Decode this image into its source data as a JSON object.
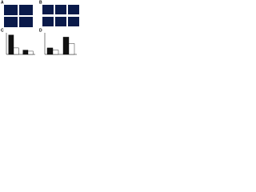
{
  "panels": {
    "a": "A",
    "b": "B",
    "c": "C",
    "d": "D"
  },
  "chart_data": [
    {
      "type": "bar",
      "categories": [
        null,
        null
      ],
      "series": [
        {
          "color": "#111111",
          "values": [
            0.9,
            0.2
          ]
        },
        {
          "color": "#ffffff",
          "values": [
            0.3,
            0.15
          ]
        }
      ],
      "ylim": [
        0,
        1
      ]
    },
    {
      "type": "bar",
      "categories": [
        null,
        null
      ],
      "series": [
        {
          "color": "#111111",
          "values": [
            0.3,
            0.8
          ]
        },
        {
          "color": "#ffffff",
          "values": [
            0.2,
            0.5
          ]
        }
      ],
      "ylim": [
        0,
        1
      ]
    }
  ]
}
